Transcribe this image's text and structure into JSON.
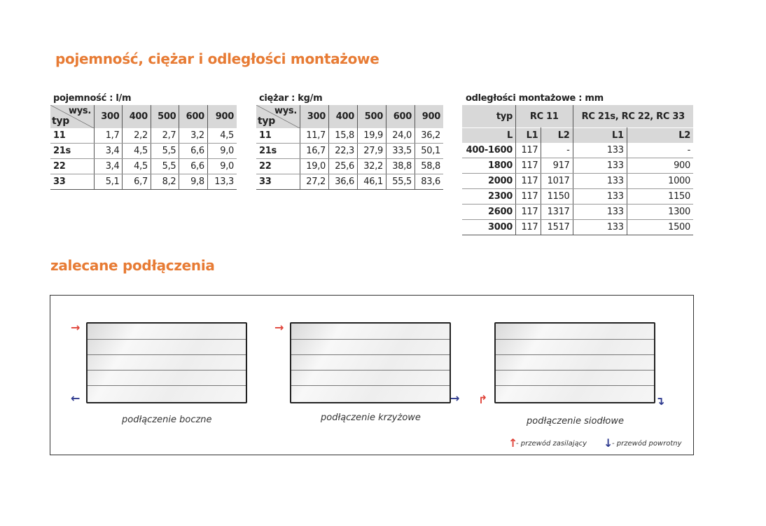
{
  "title": "pojemność, ciężar i odległości montażowe",
  "capacity": {
    "caption": "pojemność : l/m",
    "corner_top": "wys.",
    "corner_bottom": "typ",
    "heights": [
      "300",
      "400",
      "500",
      "600",
      "900"
    ],
    "rows": [
      [
        "11",
        "1,7",
        "2,2",
        "2,7",
        "3,2",
        "4,5"
      ],
      [
        "21s",
        "3,4",
        "4,5",
        "5,5",
        "6,6",
        "9,0"
      ],
      [
        "22",
        "3,4",
        "4,5",
        "5,5",
        "6,6",
        "9,0"
      ],
      [
        "33",
        "5,1",
        "6,7",
        "8,2",
        "9,8",
        "13,3"
      ]
    ]
  },
  "weight": {
    "caption": "ciężar : kg/m",
    "corner_top": "wys.",
    "corner_bottom": "typ",
    "heights": [
      "300",
      "400",
      "500",
      "600",
      "900"
    ],
    "rows": [
      [
        "11",
        "11,7",
        "15,8",
        "19,9",
        "24,0",
        "36,2"
      ],
      [
        "21s",
        "16,7",
        "22,3",
        "27,9",
        "33,5",
        "50,1"
      ],
      [
        "22",
        "19,0",
        "25,6",
        "32,2",
        "38,8",
        "58,8"
      ],
      [
        "33",
        "27,2",
        "36,6",
        "46,1",
        "55,5",
        "83,6"
      ]
    ]
  },
  "mounting": {
    "caption": "odległości montażowe : mm",
    "header1": [
      "typ",
      "RC 11",
      "RC 21s, RC 22, RC 33"
    ],
    "header2": [
      "L",
      "L1",
      "L2",
      "L1",
      "L2"
    ],
    "rows": [
      [
        "400-1600",
        "117",
        "-",
        "133",
        "-"
      ],
      [
        "1800",
        "117",
        "917",
        "133",
        "900"
      ],
      [
        "2000",
        "117",
        "1017",
        "133",
        "1000"
      ],
      [
        "2300",
        "117",
        "1150",
        "133",
        "1150"
      ],
      [
        "2600",
        "117",
        "1317",
        "133",
        "1300"
      ],
      [
        "3000",
        "117",
        "1517",
        "133",
        "1500"
      ]
    ]
  },
  "connections": {
    "title": "zalecane podłączenia",
    "items": [
      "podłączenie boczne",
      "podłączenie krzyżowe",
      "podłączenie siodłowe"
    ],
    "legend_supply": "- przewód zasilający",
    "legend_return": "- przewód powrotny",
    "supply_color": "#e0443a",
    "return_color": "#2e3a8f"
  }
}
